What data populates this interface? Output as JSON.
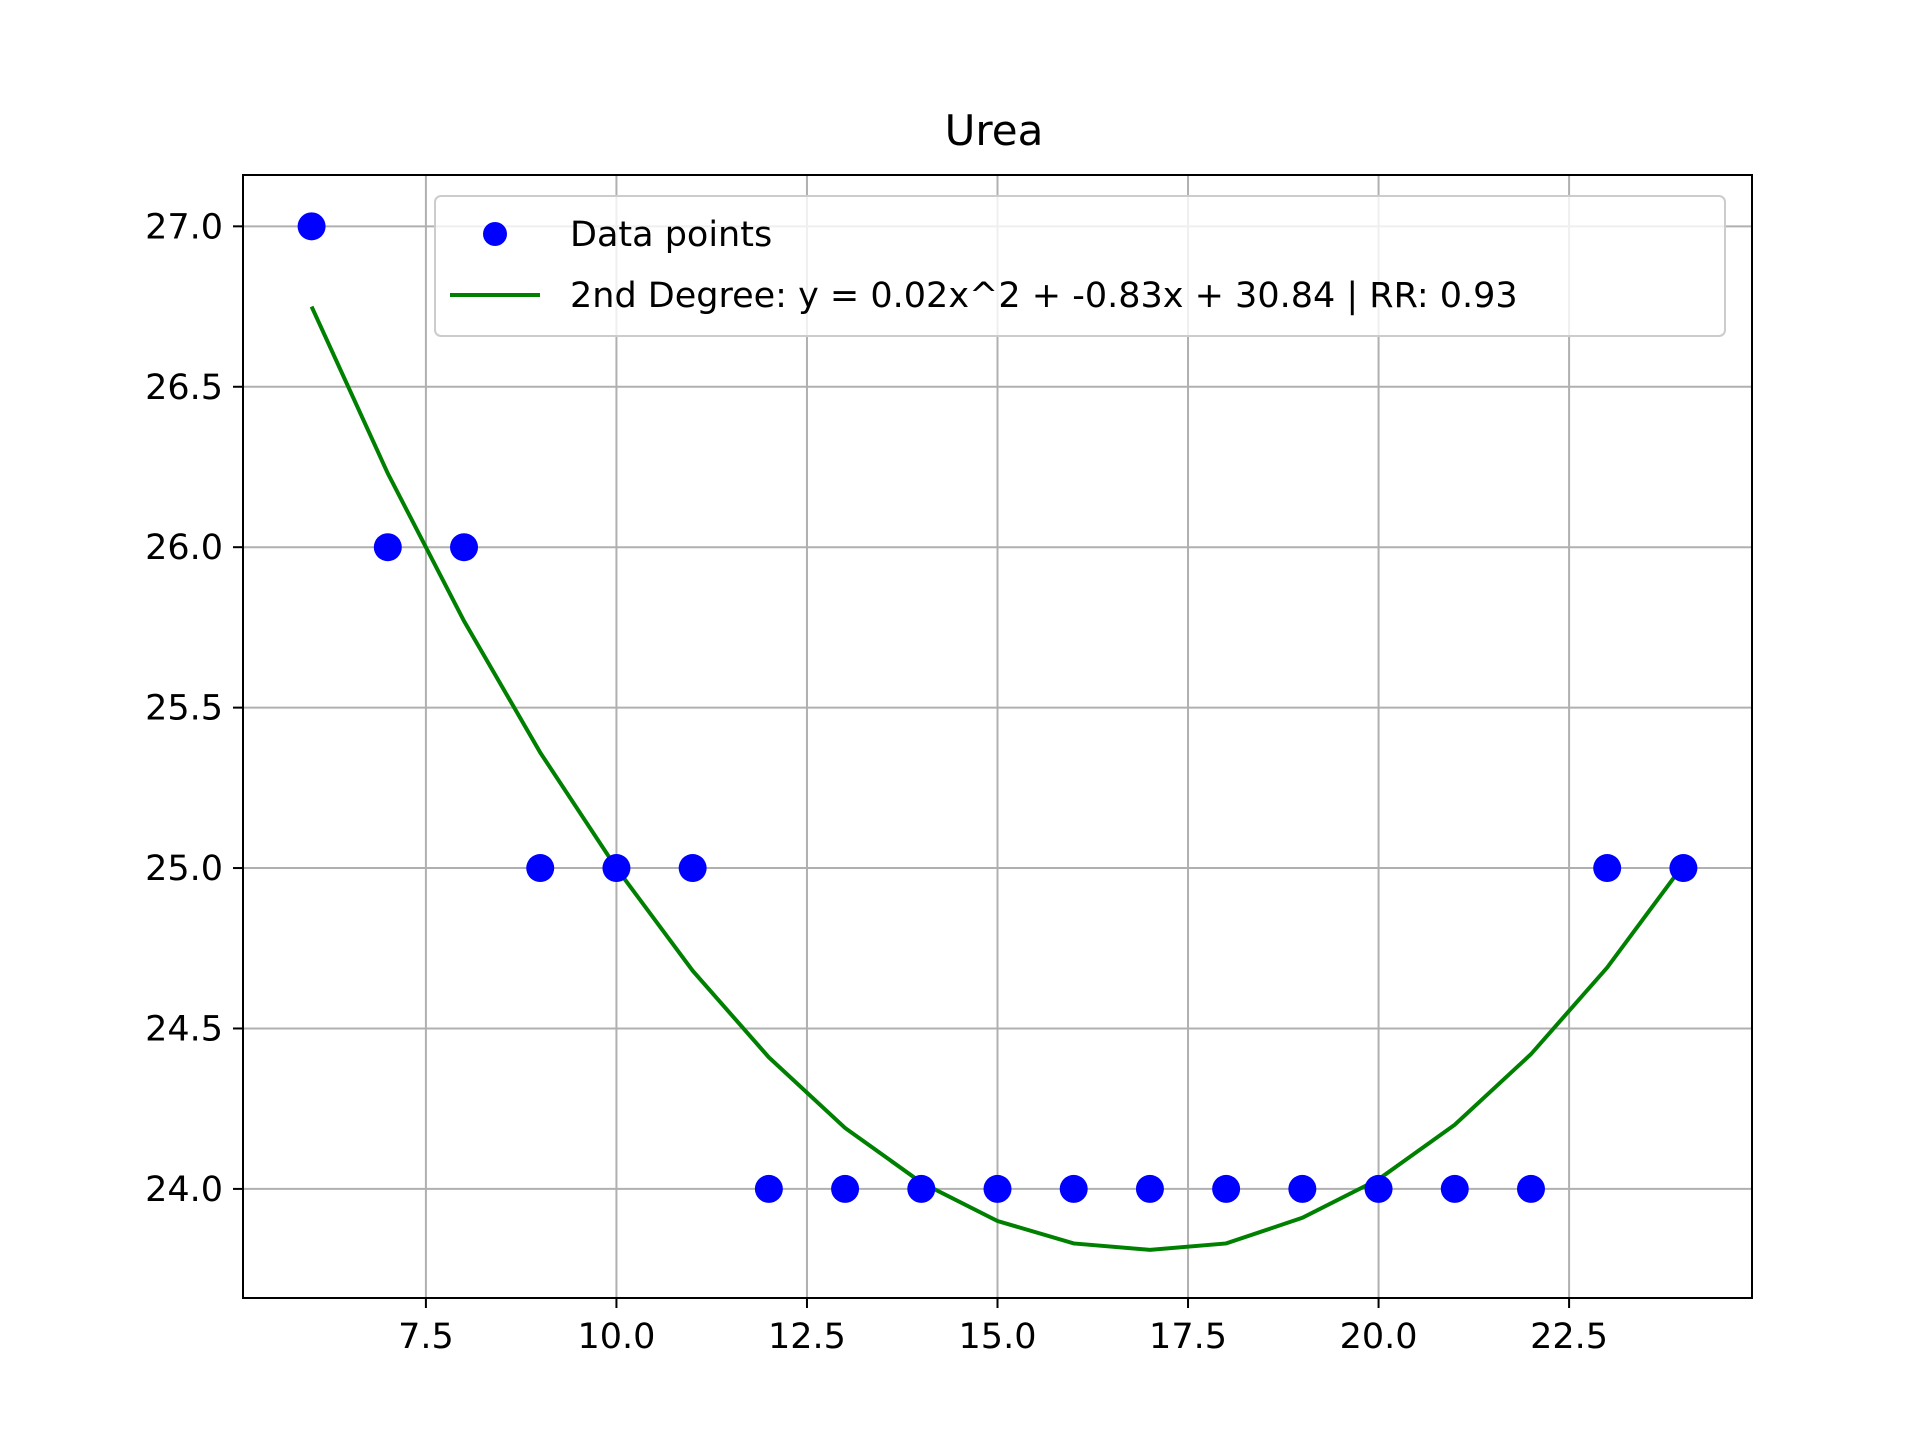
{
  "chart_data": {
    "type": "scatter",
    "title": "Urea",
    "xlabel": "",
    "ylabel": "",
    "xlim": [
      5.1,
      24.9
    ],
    "ylim": [
      23.66,
      27.16
    ],
    "xticks": [
      7.5,
      10.0,
      12.5,
      15.0,
      17.5,
      20.0,
      22.5
    ],
    "xtick_labels": [
      "7.5",
      "10.0",
      "12.5",
      "15.0",
      "17.5",
      "20.0",
      "22.5"
    ],
    "yticks": [
      24.0,
      24.5,
      25.0,
      25.5,
      26.0,
      26.5,
      27.0
    ],
    "ytick_labels": [
      "24.0",
      "24.5",
      "25.0",
      "25.5",
      "26.0",
      "26.5",
      "27.0"
    ],
    "grid": true,
    "legend_position": "top-right",
    "series": [
      {
        "name": "Data points",
        "kind": "scatter",
        "color": "#0000ff",
        "x": [
          6,
          7,
          8,
          9,
          10,
          11,
          12,
          13,
          14,
          15,
          16,
          17,
          18,
          19,
          20,
          21,
          22,
          23,
          24
        ],
        "y": [
          27,
          26,
          26,
          25,
          25,
          25,
          24,
          24,
          24,
          24,
          24,
          24,
          24,
          24,
          24,
          24,
          24,
          25,
          25
        ]
      },
      {
        "name": "2nd Degree: y = 0.02x^2 + -0.83x + 30.84 | RR: 0.93",
        "kind": "line",
        "color": "#008000",
        "x": [
          6,
          7,
          8,
          9,
          10,
          11,
          12,
          13,
          14,
          15,
          16,
          17,
          18,
          19,
          20,
          21,
          22,
          23,
          24
        ],
        "y": [
          26.75,
          26.23,
          25.77,
          25.36,
          25.0,
          24.68,
          24.41,
          24.19,
          24.02,
          23.9,
          23.83,
          23.81,
          23.83,
          23.91,
          24.03,
          24.2,
          24.42,
          24.69,
          25.01
        ]
      }
    ]
  }
}
